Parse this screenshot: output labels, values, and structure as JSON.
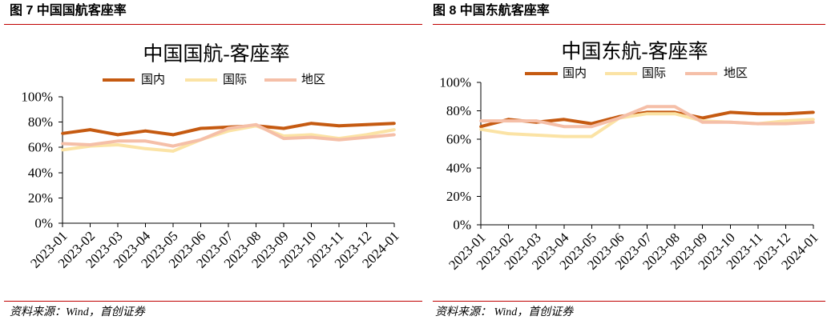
{
  "figures": [
    {
      "caption": "图 7 中国国航客座率",
      "source": "资料来源：Wind，首创证券"
    },
    {
      "caption": "图 8 中国东航客座率",
      "source": "资料来源： Wind，首创证券"
    }
  ],
  "colors": {
    "rule": "#C00000",
    "axis": "#000000"
  },
  "chart_data": [
    {
      "type": "line",
      "title": "中国国航-客座率",
      "categories": [
        "2023-01",
        "2023-02",
        "2023-03",
        "2023-04",
        "2023-05",
        "2023-06",
        "2023-07",
        "2023-08",
        "2023-09",
        "2023-10",
        "2023-11",
        "2023-12",
        "2024-01"
      ],
      "ylim": [
        0,
        100
      ],
      "y_ticks": [
        0,
        20,
        40,
        60,
        80,
        100
      ],
      "y_tick_labels": [
        "0%",
        "20%",
        "40%",
        "60%",
        "80%",
        "100%"
      ],
      "grid": false,
      "legend": "top",
      "series": [
        {
          "name": "国内",
          "color": "#C55A11",
          "values": [
            71,
            74,
            70,
            73,
            70,
            75,
            76,
            77,
            75,
            79,
            77,
            78,
            79
          ]
        },
        {
          "name": "国际",
          "color": "#FBE3A5",
          "values": [
            58,
            61,
            62,
            59,
            57,
            66,
            73,
            77,
            69,
            70,
            67,
            70,
            74
          ]
        },
        {
          "name": "地区",
          "color": "#F5BFA8",
          "values": [
            63,
            62,
            65,
            65,
            61,
            66,
            75,
            78,
            67,
            68,
            66,
            68,
            70
          ]
        }
      ]
    },
    {
      "type": "line",
      "title": "中国东航-客座率",
      "categories": [
        "2023-01",
        "2023-02",
        "2023-03",
        "2023-04",
        "2023-05",
        "2023-06",
        "2023-07",
        "2023-08",
        "2023-09",
        "2023-10",
        "2023-11",
        "2023-12",
        "2024-01"
      ],
      "ylim": [
        0,
        100
      ],
      "y_ticks": [
        0,
        20,
        40,
        60,
        80,
        100
      ],
      "y_tick_labels": [
        "0%",
        "20%",
        "40%",
        "60%",
        "80%",
        "100%"
      ],
      "grid": false,
      "legend": "top",
      "series": [
        {
          "name": "国内",
          "color": "#C55A11",
          "values": [
            69,
            74,
            72,
            74,
            71,
            76,
            79,
            79,
            75,
            79,
            78,
            78,
            79
          ]
        },
        {
          "name": "国际",
          "color": "#FBE3A5",
          "values": [
            67,
            64,
            63,
            62,
            62,
            75,
            78,
            78,
            73,
            72,
            71,
            73,
            74
          ]
        },
        {
          "name": "地区",
          "color": "#F5BFA8",
          "values": [
            73,
            73,
            73,
            69,
            69,
            75,
            83,
            83,
            72,
            72,
            71,
            71,
            72
          ]
        }
      ]
    }
  ]
}
